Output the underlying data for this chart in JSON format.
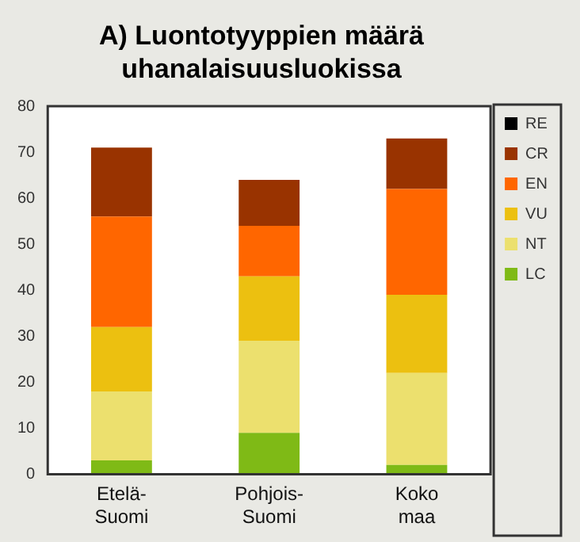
{
  "chart_data": {
    "type": "bar",
    "title": "A) Luontotyyppien määrä uhanalaisuusluokissa",
    "categories": [
      "Etelä-Suomi",
      "Pohjois-Suomi",
      "Koko maa"
    ],
    "stacked": true,
    "series": [
      {
        "name": "LC",
        "color": "#7fba16",
        "values": [
          3,
          9,
          2
        ]
      },
      {
        "name": "NT",
        "color": "#ece06e",
        "values": [
          15,
          20,
          20
        ]
      },
      {
        "name": "VU",
        "color": "#ecc010",
        "values": [
          14,
          14,
          17
        ]
      },
      {
        "name": "EN",
        "color": "#ff6600",
        "values": [
          24,
          11,
          23
        ]
      },
      {
        "name": "CR",
        "color": "#993300",
        "values": [
          15,
          10,
          11
        ]
      },
      {
        "name": "RE",
        "color": "#000000",
        "values": [
          0,
          0,
          0
        ]
      }
    ],
    "ylim": [
      0,
      80
    ],
    "yticks": [
      0,
      10,
      20,
      30,
      40,
      50,
      60,
      70,
      80
    ],
    "grid": false,
    "legend": "right"
  }
}
